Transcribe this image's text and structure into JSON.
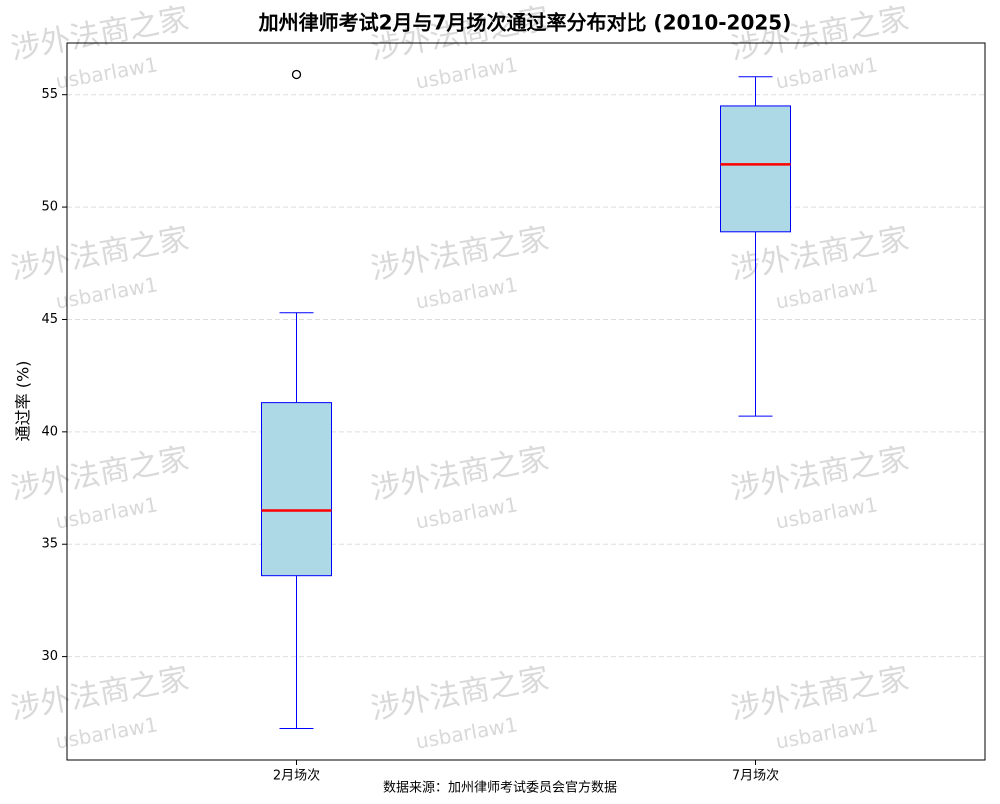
{
  "chart_data": {
    "type": "box",
    "title": "加州律师考试2月与7月场次通过率分布对比 (2010-2025)",
    "ylabel": "通过率 (%)",
    "footnote": "数据来源：加州律师考试委员会官方数据",
    "watermark": {
      "brand": "涉外法商之家",
      "account": "usbarlaw1"
    },
    "categories": [
      "2月场次",
      "7月场次"
    ],
    "boxes": [
      {
        "min": 26.8,
        "q1": 33.6,
        "median": 36.5,
        "q3": 41.3,
        "max": 45.3,
        "outliers": [
          55.9
        ]
      },
      {
        "min": 40.7,
        "q1": 48.9,
        "median": 51.9,
        "q3": 54.5,
        "max": 55.8,
        "outliers": []
      }
    ],
    "box_color": "#add8e6",
    "edge_color": "#0000ff",
    "median_color": "#ff0000",
    "ylim": [
      25.4,
      57.3
    ],
    "yticks": [
      30,
      35,
      40,
      45,
      50,
      55
    ],
    "grid": true
  }
}
